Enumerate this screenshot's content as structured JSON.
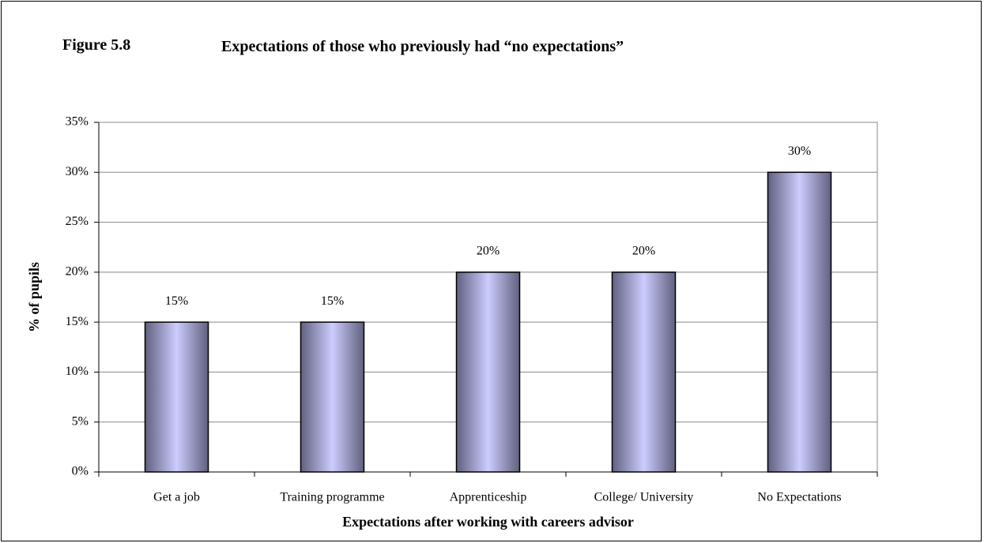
{
  "chart_data": {
    "type": "bar",
    "figure_label": "Figure 5.8",
    "title": "Expectations of those who previously had “no expectations”",
    "categories": [
      "Get a job",
      "Training programme",
      "Apprenticeship",
      "College/ University",
      "No Expectations"
    ],
    "values": [
      15,
      15,
      20,
      20,
      30
    ],
    "value_labels": [
      "15%",
      "15%",
      "20%",
      "20%",
      "30%"
    ],
    "color": "#60607e",
    "ylim": [
      0,
      35
    ],
    "yticks": [
      {
        "value": 0,
        "label": "0%"
      },
      {
        "value": 5,
        "label": "5%"
      },
      {
        "value": 10,
        "label": "10%"
      },
      {
        "value": 15,
        "label": "15%"
      },
      {
        "value": 20,
        "label": "20%"
      },
      {
        "value": 25,
        "label": "25%"
      },
      {
        "value": 30,
        "label": "30%"
      },
      {
        "value": 35,
        "label": "35%"
      }
    ],
    "grid": true,
    "ylabel": "% of pupils",
    "xlabel": "Expectations after working with careers advisor"
  }
}
